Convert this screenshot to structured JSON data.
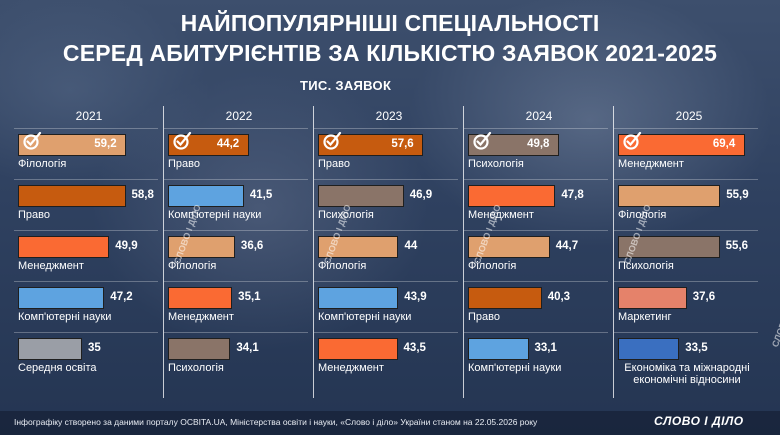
{
  "title_line1": "НАЙПОПУЛЯРНІШІ СПЕЦІАЛЬНОСТІ",
  "title_line2": "СЕРЕД АБИТУРІЄНТІВ ЗА КІЛЬКІСТЮ ЗАЯВОК 2021-2025",
  "subtitle": "ТИС. ЗАЯВОК",
  "footer": "Інфографіку створено за даними порталу OCBITA.UA, Міністерства освіти і науки, «Слово і діло» України станом на 22.05.2026 року",
  "brand": "СЛОВО І ДІЛО",
  "watermark": "СЛОВО І ДІЛО",
  "colors": {
    "Філологія": "#dfa06e",
    "Право": "#c65b0f",
    "Менеджмент": "#fa6a33",
    "Комп'ютерні науки": "#5ea3e0",
    "Середня освіта": "#9a9ea6",
    "Психологія": "#8a7468",
    "Маркетинг": "#e5826a",
    "Економіка та міжнародні економічні відносини": "#3a6fc0"
  },
  "chart_data": {
    "type": "bar",
    "title": "НАЙПОПУЛЯРНІШІ СПЕЦІАЛЬНОСТІ СЕРЕД АБИТУРІЄНТІВ ЗА КІЛЬКІСТЮ ЗАЯВОК 2021-2025",
    "unit": "ТИС. ЗАЯВОК",
    "orientation": "horizontal",
    "xlim": [
      0,
      70
    ],
    "columns": [
      {
        "year": "2021",
        "items": [
          {
            "label": "Філологія",
            "value": 59.2,
            "value_text": "59,2",
            "top": true
          },
          {
            "label": "Право",
            "value": 58.8,
            "value_text": "58,8"
          },
          {
            "label": "Менеджмент",
            "value": 49.9,
            "value_text": "49,9"
          },
          {
            "label": "Комп'ютерні науки",
            "value": 47.2,
            "value_text": "47,2"
          },
          {
            "label": "Середня освіта",
            "value": 35,
            "value_text": "35"
          }
        ]
      },
      {
        "year": "2022",
        "items": [
          {
            "label": "Право",
            "value": 44.2,
            "value_text": "44,2",
            "top": true
          },
          {
            "label": "Комп'ютерні науки",
            "value": 41.5,
            "value_text": "41,5"
          },
          {
            "label": "Філологія",
            "value": 36.6,
            "value_text": "36,6"
          },
          {
            "label": "Менеджмент",
            "value": 35.1,
            "value_text": "35,1"
          },
          {
            "label": "Психологія",
            "value": 34.1,
            "value_text": "34,1"
          }
        ]
      },
      {
        "year": "2023",
        "items": [
          {
            "label": "Право",
            "value": 57.6,
            "value_text": "57,6",
            "top": true
          },
          {
            "label": "Психологія",
            "value": 46.9,
            "value_text": "46,9"
          },
          {
            "label": "Філологія",
            "value": 44,
            "value_text": "44"
          },
          {
            "label": "Комп'ютерні науки",
            "value": 43.9,
            "value_text": "43,9"
          },
          {
            "label": "Менеджмент",
            "value": 43.5,
            "value_text": "43,5"
          }
        ]
      },
      {
        "year": "2024",
        "items": [
          {
            "label": "Психологія",
            "value": 49.8,
            "value_text": "49,8",
            "top": true
          },
          {
            "label": "Менеджмент",
            "value": 47.8,
            "value_text": "47,8"
          },
          {
            "label": "Філологія",
            "value": 44.7,
            "value_text": "44,7"
          },
          {
            "label": "Право",
            "value": 40.3,
            "value_text": "40,3"
          },
          {
            "label": "Комп'ютерні науки",
            "value": 33.1,
            "value_text": "33,1"
          }
        ]
      },
      {
        "year": "2025",
        "items": [
          {
            "label": "Менеджмент",
            "value": 69.4,
            "value_text": "69,4",
            "top": true
          },
          {
            "label": "Філологія",
            "value": 55.9,
            "value_text": "55,9"
          },
          {
            "label": "Психологія",
            "value": 55.6,
            "value_text": "55,6"
          },
          {
            "label": "Маркетинг",
            "value": 37.6,
            "value_text": "37,6"
          },
          {
            "label": "Економіка та міжнародні економічні відносини",
            "value": 33.5,
            "value_text": "33,5"
          }
        ]
      }
    ]
  }
}
